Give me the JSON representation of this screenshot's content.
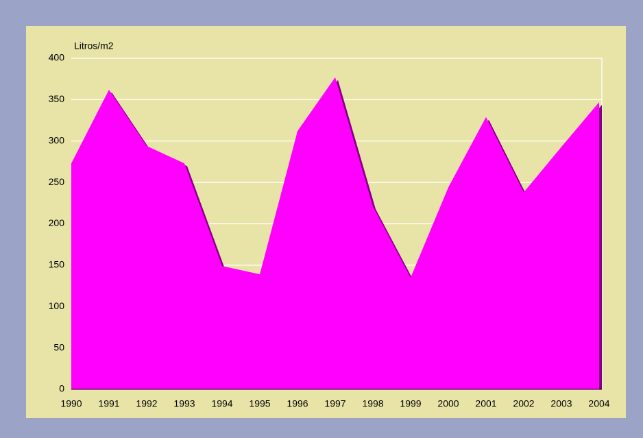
{
  "chart_data": {
    "type": "area",
    "y_label": "Litros/m2",
    "categories": [
      "1990",
      "1991",
      "1992",
      "1993",
      "1994",
      "1995",
      "1996",
      "1997",
      "1998",
      "1999",
      "2000",
      "2001",
      "2002",
      "2003",
      "2004"
    ],
    "values": [
      273,
      362,
      294,
      273,
      149,
      139,
      312,
      377,
      221,
      135,
      244,
      329,
      238,
      293,
      347
    ],
    "color": "#ff00ff",
    "shadow_color": "#800080",
    "ylim": [
      0,
      400
    ],
    "yticks": [
      0,
      50,
      100,
      150,
      200,
      250,
      300,
      350,
      400
    ],
    "grid": true
  }
}
